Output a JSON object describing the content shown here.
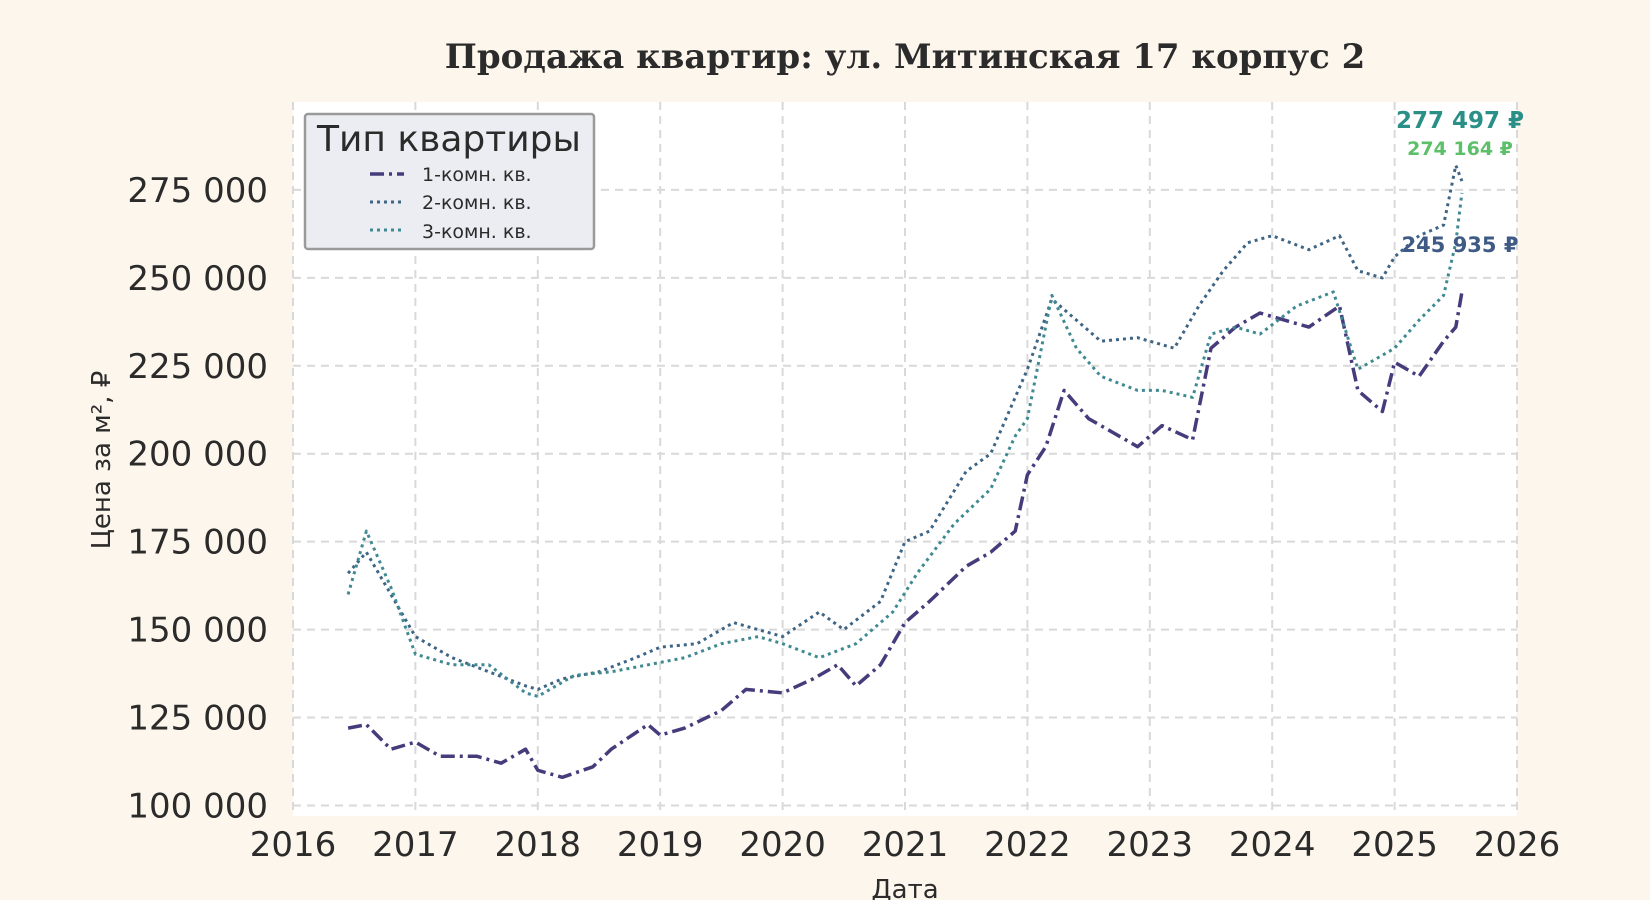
{
  "chart_data": {
    "type": "line",
    "title": "Продажа квартир: ул. Митинская 17 корпус 2",
    "xlabel": "Дата",
    "ylabel": "Цена за м², ₽",
    "xlim": [
      2016.0,
      2026.0
    ],
    "ylim": [
      97000,
      300000
    ],
    "x_ticks": [
      "2016",
      "2017",
      "2018",
      "2019",
      "2020",
      "2021",
      "2022",
      "2023",
      "2024",
      "2025",
      "2026"
    ],
    "y_ticks": [
      "100 000",
      "125 000",
      "150 000",
      "175 000",
      "200 000",
      "225 000",
      "250 000",
      "275 000"
    ],
    "grid": true,
    "legend": {
      "title": "Тип квартиры",
      "position": "top-left"
    },
    "series": [
      {
        "name": "1-комн. кв.",
        "color": "#463c7c",
        "dash": "dashdot",
        "x": [
          2016.45,
          2016.6,
          2016.8,
          2017.0,
          2017.2,
          2017.5,
          2017.7,
          2017.9,
          2018.0,
          2018.2,
          2018.45,
          2018.6,
          2018.9,
          2019.0,
          2019.2,
          2019.5,
          2019.7,
          2020.0,
          2020.25,
          2020.45,
          2020.6,
          2020.8,
          2021.0,
          2021.2,
          2021.5,
          2021.7,
          2021.9,
          2022.0,
          2022.15,
          2022.3,
          2022.5,
          2022.7,
          2022.9,
          2023.1,
          2023.35,
          2023.5,
          2023.7,
          2023.9,
          2024.1,
          2024.3,
          2024.55,
          2024.7,
          2024.9,
          2025.0,
          2025.2,
          2025.4,
          2025.5,
          2025.55
        ],
        "values": [
          122000,
          123000,
          116000,
          118000,
          114000,
          114000,
          112000,
          116000,
          110000,
          108000,
          111000,
          116000,
          123000,
          120000,
          122000,
          127000,
          133000,
          132000,
          136000,
          140000,
          134000,
          140000,
          152000,
          158000,
          168000,
          172000,
          178000,
          194000,
          202000,
          218000,
          210000,
          206000,
          202000,
          208000,
          204000,
          230000,
          236000,
          240000,
          238000,
          236000,
          242000,
          218000,
          212000,
          226000,
          222000,
          232000,
          236000,
          245935
        ]
      },
      {
        "name": "2-комн. кв.",
        "color": "#3f6585",
        "dash": "dotted",
        "x": [
          2016.45,
          2016.6,
          2016.8,
          2017.0,
          2017.3,
          2017.6,
          2017.9,
          2018.0,
          2018.2,
          2018.5,
          2018.8,
          2019.0,
          2019.3,
          2019.6,
          2019.8,
          2020.0,
          2020.3,
          2020.5,
          2020.8,
          2021.0,
          2021.2,
          2021.5,
          2021.7,
          2022.0,
          2022.2,
          2022.4,
          2022.6,
          2022.9,
          2023.2,
          2023.4,
          2023.6,
          2023.8,
          2024.0,
          2024.3,
          2024.55,
          2024.7,
          2024.9,
          2025.0,
          2025.2,
          2025.4,
          2025.5,
          2025.55
        ],
        "values": [
          166000,
          172000,
          160000,
          148000,
          142000,
          138000,
          134000,
          133000,
          136000,
          138000,
          142000,
          145000,
          146000,
          152000,
          150000,
          148000,
          155000,
          150000,
          158000,
          175000,
          178000,
          195000,
          200000,
          224000,
          244000,
          238000,
          232000,
          233000,
          230000,
          242000,
          252000,
          260000,
          262000,
          258000,
          262000,
          252000,
          250000,
          256000,
          262000,
          265000,
          282000,
          277497
        ]
      },
      {
        "name": "3-комн. кв.",
        "color": "#3f8a92",
        "dash": "dotted",
        "x": [
          2016.45,
          2016.6,
          2016.8,
          2017.0,
          2017.3,
          2017.6,
          2017.9,
          2018.0,
          2018.3,
          2018.6,
          2018.9,
          2019.2,
          2019.5,
          2019.8,
          2020.0,
          2020.3,
          2020.6,
          2020.9,
          2021.1,
          2021.4,
          2021.7,
          2021.9,
          2022.0,
          2022.2,
          2022.4,
          2022.6,
          2022.9,
          2023.1,
          2023.35,
          2023.5,
          2023.7,
          2023.9,
          2024.2,
          2024.5,
          2024.7,
          2024.9,
          2025.0,
          2025.2,
          2025.4,
          2025.5,
          2025.55
        ],
        "values": [
          160000,
          178000,
          162000,
          143000,
          140000,
          140000,
          132000,
          131000,
          137000,
          138000,
          140000,
          142000,
          146000,
          148000,
          146000,
          142000,
          146000,
          155000,
          166000,
          180000,
          190000,
          205000,
          210000,
          245000,
          230000,
          222000,
          218000,
          218000,
          216000,
          234000,
          236000,
          234000,
          242000,
          246000,
          224000,
          228000,
          230000,
          238000,
          245000,
          260000,
          274164
        ]
      }
    ],
    "last_labels": [
      {
        "text": "277 497 ₽",
        "color": "#2a8f86"
      },
      {
        "text": "274 164 ₽",
        "color": "#5cc06a"
      },
      {
        "text": "245 935 ₽",
        "color": "#3e5a85"
      }
    ]
  }
}
